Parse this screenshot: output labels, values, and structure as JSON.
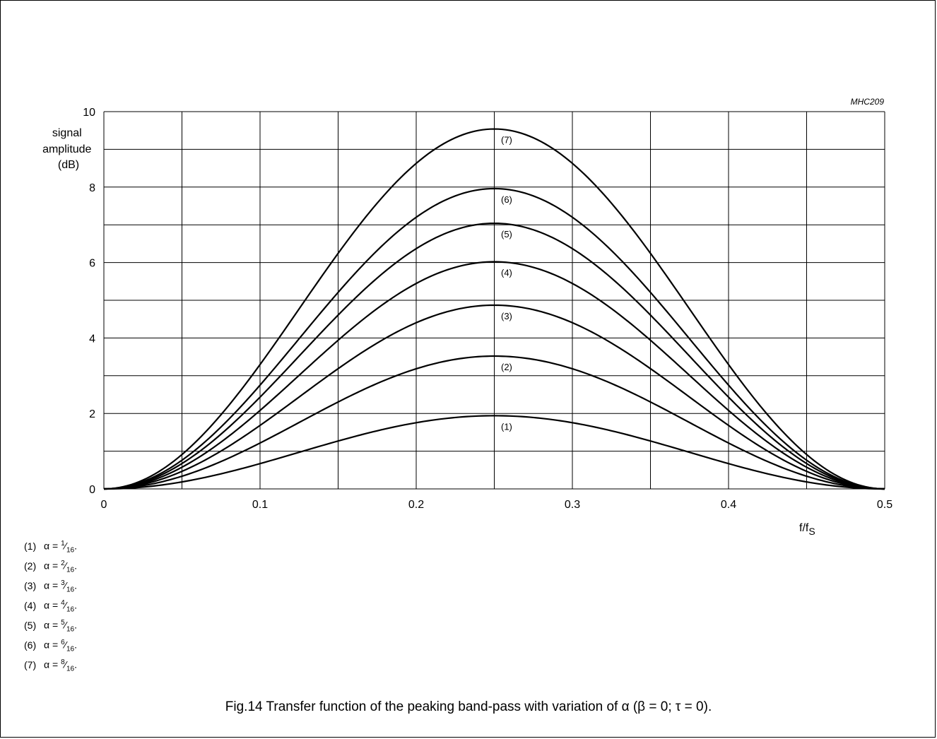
{
  "figure_code": "MHC209",
  "caption": "Fig.14  Transfer function of the peaking band-pass with variation of α (β = 0; τ = 0).",
  "legend": [
    {
      "id": "(1)",
      "prefix": "α = ",
      "num": "1",
      "den": "16",
      "suffix": "."
    },
    {
      "id": "(2)",
      "prefix": "α = ",
      "num": "2",
      "den": "16",
      "suffix": "."
    },
    {
      "id": "(3)",
      "prefix": "α = ",
      "num": "3",
      "den": "16",
      "suffix": "."
    },
    {
      "id": "(4)",
      "prefix": "α = ",
      "num": "4",
      "den": "16",
      "suffix": "."
    },
    {
      "id": "(5)",
      "prefix": "α = ",
      "num": "5",
      "den": "16",
      "suffix": "."
    },
    {
      "id": "(6)",
      "prefix": "α = ",
      "num": "6",
      "den": "16",
      "suffix": "."
    },
    {
      "id": "(7)",
      "prefix": "α = ",
      "num": "8",
      "den": "16",
      "suffix": "."
    }
  ],
  "chart_data": {
    "type": "line",
    "title": "",
    "ylabel_lines": [
      "signal",
      "amplitude",
      "(dB)"
    ],
    "xlabel_main": "f/f",
    "xlabel_sub": "S",
    "xlim": [
      0,
      0.5
    ],
    "ylim": [
      0,
      10
    ],
    "xticks": [
      "0",
      "0.1",
      "0.2",
      "0.3",
      "0.4",
      "0.5"
    ],
    "yticks": [
      "0",
      "2",
      "4",
      "6",
      "8",
      "10"
    ],
    "x_gridlines": [
      0,
      0.05,
      0.1,
      0.15,
      0.2,
      0.25,
      0.3,
      0.35,
      0.4,
      0.45,
      0.5
    ],
    "y_gridlines": [
      0,
      1,
      2,
      3,
      4,
      5,
      6,
      7,
      8,
      9,
      10
    ],
    "grid": true,
    "curve_shape": "y = peak · sin²(2π·f/fs)",
    "series": [
      {
        "name": "(1)",
        "peak": 1.94
      },
      {
        "name": "(2)",
        "peak": 3.52
      },
      {
        "name": "(3)",
        "peak": 4.87
      },
      {
        "name": "(4)",
        "peak": 6.02
      },
      {
        "name": "(5)",
        "peak": 7.04
      },
      {
        "name": "(6)",
        "peak": 7.96
      },
      {
        "name": "(7)",
        "peak": 9.54
      }
    ],
    "x": [
      0,
      0.025,
      0.05,
      0.075,
      0.1,
      0.125,
      0.15,
      0.175,
      0.2,
      0.225,
      0.25,
      0.275,
      0.3,
      0.325,
      0.35,
      0.375,
      0.4,
      0.425,
      0.45,
      0.475,
      0.5
    ]
  }
}
